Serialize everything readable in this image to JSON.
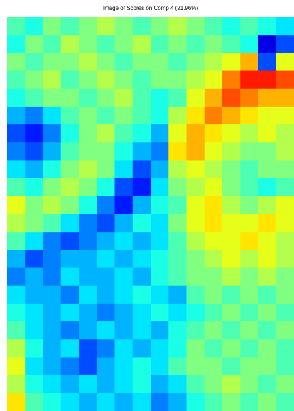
{
  "chart_data": {
    "type": "heatmap",
    "title": "Image of Scores on Comp 4 (21.96%)",
    "colormap": "jet",
    "zlim": [
      0,
      1
    ],
    "z": [
      [
        0.45,
        0.4,
        0.5,
        0.45,
        0.5,
        0.55,
        0.5,
        0.45,
        0.5,
        0.55,
        0.5,
        0.45,
        0.4,
        0.45,
        0.4,
        0.35
      ],
      [
        0.4,
        0.5,
        0.45,
        0.55,
        0.5,
        0.45,
        0.5,
        0.55,
        0.45,
        0.5,
        0.45,
        0.5,
        0.45,
        0.4,
        0.1,
        0.2
      ],
      [
        0.5,
        0.45,
        0.5,
        0.5,
        0.55,
        0.5,
        0.45,
        0.5,
        0.5,
        0.45,
        0.5,
        0.55,
        0.6,
        0.7,
        0.2,
        0.6
      ],
      [
        0.45,
        0.5,
        0.55,
        0.45,
        0.5,
        0.55,
        0.5,
        0.45,
        0.5,
        0.5,
        0.55,
        0.6,
        0.75,
        0.85,
        0.85,
        0.8
      ],
      [
        0.4,
        0.45,
        0.5,
        0.5,
        0.45,
        0.5,
        0.55,
        0.45,
        0.4,
        0.45,
        0.6,
        0.7,
        0.8,
        0.75,
        0.7,
        0.7
      ],
      [
        0.3,
        0.25,
        0.35,
        0.45,
        0.5,
        0.45,
        0.5,
        0.45,
        0.4,
        0.55,
        0.65,
        0.75,
        0.7,
        0.65,
        0.6,
        0.6
      ],
      [
        0.2,
        0.15,
        0.25,
        0.4,
        0.5,
        0.55,
        0.45,
        0.4,
        0.3,
        0.6,
        0.7,
        0.65,
        0.6,
        0.55,
        0.6,
        0.55
      ],
      [
        0.25,
        0.2,
        0.3,
        0.45,
        0.5,
        0.5,
        0.4,
        0.3,
        0.25,
        0.65,
        0.7,
        0.6,
        0.55,
        0.5,
        0.5,
        0.55
      ],
      [
        0.35,
        0.3,
        0.4,
        0.5,
        0.55,
        0.5,
        0.35,
        0.2,
        0.3,
        0.55,
        0.6,
        0.55,
        0.5,
        0.45,
        0.5,
        0.5
      ],
      [
        0.45,
        0.4,
        0.5,
        0.55,
        0.5,
        0.4,
        0.2,
        0.15,
        0.35,
        0.5,
        0.55,
        0.6,
        0.5,
        0.45,
        0.4,
        0.45
      ],
      [
        0.6,
        0.5,
        0.55,
        0.5,
        0.4,
        0.25,
        0.15,
        0.3,
        0.4,
        0.45,
        0.6,
        0.65,
        0.55,
        0.5,
        0.55,
        0.6
      ],
      [
        0.55,
        0.5,
        0.45,
        0.35,
        0.25,
        0.2,
        0.3,
        0.4,
        0.35,
        0.5,
        0.6,
        0.65,
        0.6,
        0.6,
        0.65,
        0.6
      ],
      [
        0.45,
        0.35,
        0.25,
        0.2,
        0.25,
        0.3,
        0.35,
        0.3,
        0.35,
        0.45,
        0.55,
        0.6,
        0.6,
        0.65,
        0.6,
        0.55
      ],
      [
        0.3,
        0.2,
        0.25,
        0.3,
        0.3,
        0.35,
        0.3,
        0.35,
        0.4,
        0.45,
        0.5,
        0.55,
        0.6,
        0.55,
        0.6,
        0.55
      ],
      [
        0.25,
        0.3,
        0.25,
        0.35,
        0.3,
        0.3,
        0.35,
        0.3,
        0.4,
        0.45,
        0.5,
        0.5,
        0.55,
        0.5,
        0.55,
        0.5
      ],
      [
        0.35,
        0.3,
        0.3,
        0.25,
        0.35,
        0.3,
        0.35,
        0.4,
        0.35,
        0.3,
        0.45,
        0.5,
        0.45,
        0.5,
        0.45,
        0.5
      ],
      [
        0.4,
        0.35,
        0.3,
        0.35,
        0.3,
        0.25,
        0.3,
        0.35,
        0.4,
        0.35,
        0.4,
        0.45,
        0.5,
        0.45,
        0.5,
        0.45
      ],
      [
        0.45,
        0.35,
        0.3,
        0.25,
        0.3,
        0.35,
        0.3,
        0.35,
        0.3,
        0.4,
        0.45,
        0.5,
        0.45,
        0.5,
        0.45,
        0.5
      ],
      [
        0.55,
        0.4,
        0.3,
        0.35,
        0.2,
        0.25,
        0.35,
        0.3,
        0.35,
        0.4,
        0.5,
        0.45,
        0.5,
        0.45,
        0.5,
        0.45
      ],
      [
        0.6,
        0.35,
        0.3,
        0.25,
        0.2,
        0.3,
        0.35,
        0.4,
        0.35,
        0.45,
        0.5,
        0.5,
        0.45,
        0.5,
        0.5,
        0.45
      ],
      [
        0.55,
        0.4,
        0.35,
        0.3,
        0.35,
        0.3,
        0.35,
        0.4,
        0.3,
        0.35,
        0.45,
        0.5,
        0.55,
        0.5,
        0.45,
        0.5
      ],
      [
        0.65,
        0.45,
        0.4,
        0.35,
        0.3,
        0.35,
        0.3,
        0.35,
        0.25,
        0.3,
        0.4,
        0.45,
        0.5,
        0.45,
        0.5,
        0.45
      ]
    ]
  }
}
